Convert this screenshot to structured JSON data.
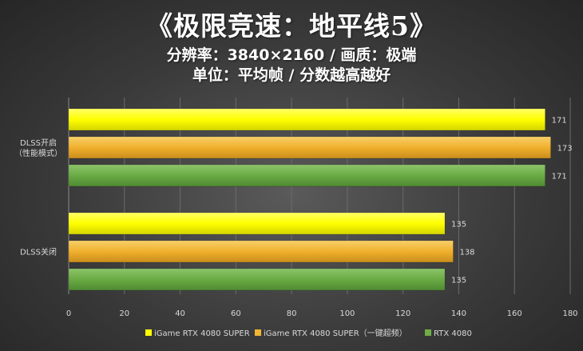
{
  "chart_data": {
    "type": "bar",
    "orientation": "horizontal",
    "title": "《极限竞速：地平线5》",
    "subtitle": "分辨率：3840×2160 / 画质：极端",
    "unit_line": "单位：平均帧 / 分数越高越好",
    "categories": [
      {
        "label": [
          "DLSS开启",
          "（性能模式）"
        ]
      },
      {
        "label": [
          "DLSS关闭"
        ]
      }
    ],
    "series": [
      {
        "name": "iGame RTX 4080 SUPER",
        "color": "#ffff00",
        "values": [
          171,
          135
        ]
      },
      {
        "name": "iGame RTX 4080 SUPER（一键超频）",
        "color": "#f2b632",
        "values": [
          173,
          138
        ]
      },
      {
        "name": "RTX 4080",
        "color": "#70ad47",
        "values": [
          171,
          135
        ]
      }
    ],
    "xlim": [
      0,
      180
    ],
    "xticks": [
      0,
      20,
      40,
      60,
      80,
      100,
      120,
      140,
      160,
      180
    ],
    "grid": true,
    "legend_position": "bottom"
  }
}
